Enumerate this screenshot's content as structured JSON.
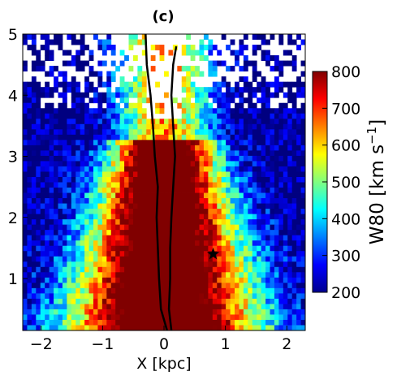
{
  "chart_data": {
    "type": "heatmap",
    "title": "(c)",
    "xlabel": "X [kpc]",
    "ylabel": "",
    "xlim": [
      -2.3,
      2.3
    ],
    "ylim": [
      0.15,
      5.0
    ],
    "x_ticks": [
      "−2",
      "−1",
      "0",
      "1",
      "2"
    ],
    "x_tick_values": [
      -2,
      -1,
      0,
      1,
      2
    ],
    "y_ticks": [
      "1",
      "2",
      "3",
      "4",
      "5"
    ],
    "y_tick_values": [
      1,
      2,
      3,
      4,
      5
    ],
    "colorbar": {
      "label": "W80 [km s",
      "label_sup": "−1",
      "label_close": "]",
      "min": 200,
      "max": 800,
      "ticks": [
        "200",
        "300",
        "400",
        "500",
        "600",
        "700",
        "800"
      ],
      "tick_values": [
        200,
        300,
        400,
        500,
        600,
        700,
        800
      ],
      "colormap": "jet"
    },
    "grid": false,
    "star_marker": {
      "x": 0.8,
      "y": 1.4
    },
    "contour": [
      {
        "x": 0.05,
        "y": 0.15
      },
      {
        "x": -0.05,
        "y": 0.5
      },
      {
        "x": -0.08,
        "y": 1.0
      },
      {
        "x": -0.1,
        "y": 1.5
      },
      {
        "x": -0.12,
        "y": 2.0
      },
      {
        "x": -0.1,
        "y": 2.5
      },
      {
        "x": -0.15,
        "y": 3.0
      },
      {
        "x": -0.18,
        "y": 3.5
      },
      {
        "x": -0.22,
        "y": 4.0
      },
      {
        "x": -0.28,
        "y": 4.5
      },
      {
        "x": -0.3,
        "y": 5.0
      }
    ],
    "contour2": [
      {
        "x": 0.12,
        "y": 0.15
      },
      {
        "x": 0.08,
        "y": 0.5
      },
      {
        "x": 0.1,
        "y": 1.0
      },
      {
        "x": 0.1,
        "y": 1.5
      },
      {
        "x": 0.12,
        "y": 2.0
      },
      {
        "x": 0.15,
        "y": 2.5
      },
      {
        "x": 0.18,
        "y": 3.0
      },
      {
        "x": 0.15,
        "y": 3.5
      },
      {
        "x": 0.12,
        "y": 4.0
      },
      {
        "x": 0.15,
        "y": 4.5
      },
      {
        "x": 0.2,
        "y": 4.8
      }
    ],
    "grid_cells": [
      64,
      56
    ],
    "description_model": "W80 high (~800) near X=0 at low Y, widening cone; lower toward edges; saturated blank cells above Y≈4"
  }
}
